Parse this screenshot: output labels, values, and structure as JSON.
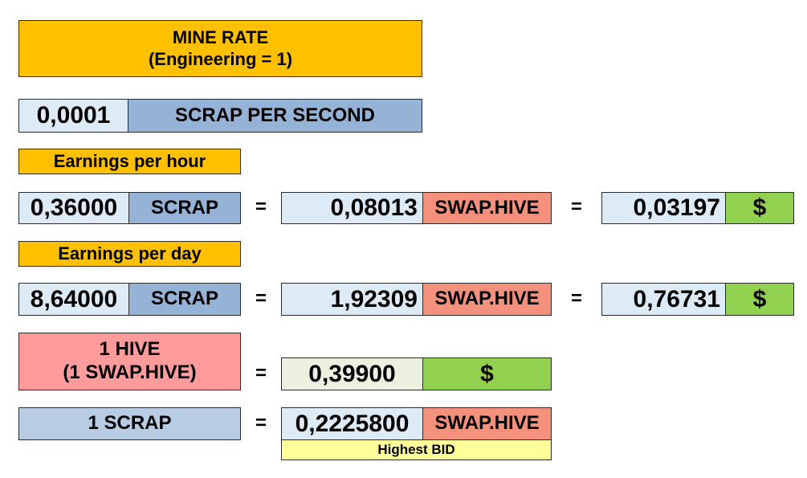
{
  "mine_rate": {
    "line1": "MINE RATE",
    "line2": "(Engineering = 1)"
  },
  "per_second": {
    "value": "0,0001",
    "label": "SCRAP PER SECOND"
  },
  "hour": {
    "header": "Earnings per hour",
    "scrap_value": "0,36000",
    "scrap_label": "SCRAP",
    "hive_value": "0,08013",
    "hive_label": "SWAP.HIVE",
    "usd_value": "0,03197",
    "usd_label": "$"
  },
  "day": {
    "header": "Earnings per day",
    "scrap_value": "8,64000",
    "scrap_label": "SCRAP",
    "hive_value": "1,92309",
    "hive_label": "SWAP.HIVE",
    "usd_value": "0,76731",
    "usd_label": "$"
  },
  "hive_price": {
    "line1": "1 HIVE",
    "line2": "(1 SWAP.HIVE)",
    "value": "0,39900",
    "unit": "$"
  },
  "scrap_price": {
    "label": "1 SCRAP",
    "value": "0,2225800",
    "unit": "SWAP.HIVE",
    "note": "Highest BID"
  },
  "equals": "="
}
